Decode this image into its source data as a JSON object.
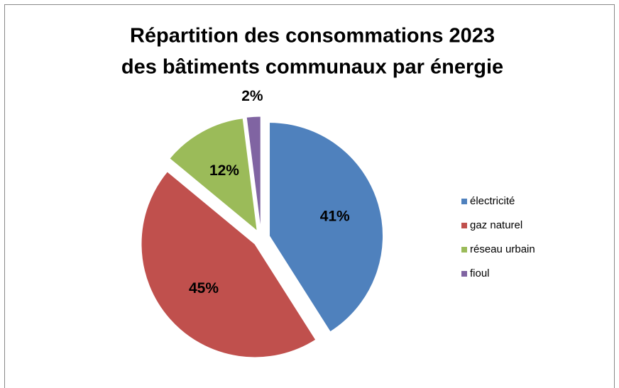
{
  "chart_data": {
    "type": "pie",
    "title": [
      "Répartition des consommations 2023",
      "des bâtiments communaux par énergie"
    ],
    "categories": [
      "électricité",
      "gaz naturel",
      "réseau urbain",
      "fioul"
    ],
    "values": [
      41,
      45,
      12,
      2
    ],
    "value_labels": [
      "41%",
      "45%",
      "12%",
      "2%"
    ],
    "colors": [
      "#4f81bd",
      "#c0504d",
      "#9bbb59",
      "#8064a2"
    ],
    "legend": "right"
  }
}
